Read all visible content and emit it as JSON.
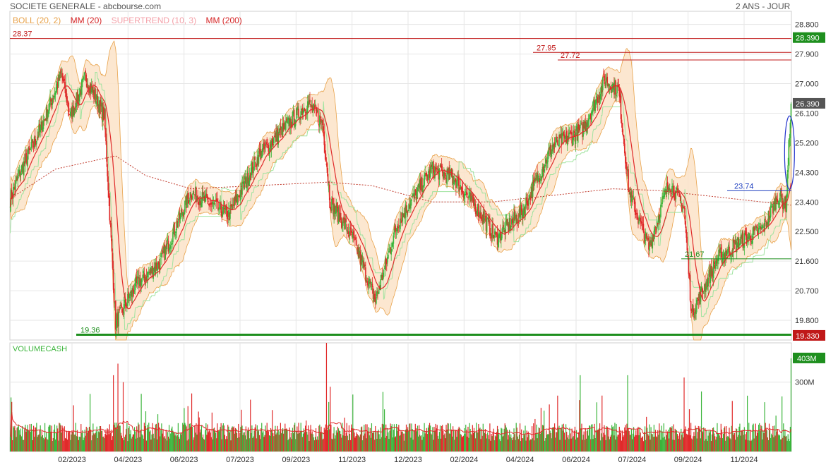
{
  "header": {
    "title": "SOCIETE GENERALE - abcbourse.com",
    "period": "2 ANS - JOUR"
  },
  "legend": [
    {
      "label": "BOLL (20, 2)",
      "color": "#e8a24a"
    },
    {
      "label": "MM (20)",
      "color": "#d62728"
    },
    {
      "label": "SUPERTREND (10, 3)",
      "color": "#f4a0a8"
    },
    {
      "label": "MM (200)",
      "color": "#d62728"
    }
  ],
  "colors": {
    "up": "#3bb53b",
    "down": "#e02a2a",
    "boll_fill": "#fbe3c8",
    "boll_line": "#e8a24a",
    "grid": "#e6e6e6"
  },
  "chart_data": {
    "type": "candlestick",
    "title": "SOCIETE GENERALE",
    "price_axis": {
      "ticks": [
        "28.800",
        "27.900",
        "27.000",
        "26.100",
        "25.200",
        "24.300",
        "23.400",
        "22.500",
        "21.600",
        "20.700",
        "19.800"
      ],
      "ylim": [
        19.2,
        29.2
      ]
    },
    "x_ticks": [
      "02/2023",
      "04/2023",
      "06/2023",
      "07/2023",
      "09/2023",
      "11/2023",
      "12/2023",
      "02/2024",
      "04/2024",
      "06/2024",
      "07/2024",
      "09/2024",
      "11/2024"
    ],
    "last_price": "26.390",
    "price_tags": [
      {
        "label": "28.390",
        "value": 28.39,
        "color": "#1e8f1e"
      },
      {
        "label": "19.330",
        "value": 19.33,
        "color": "#c01818"
      }
    ],
    "levels": [
      {
        "label": "28.37",
        "value": 28.37,
        "color": "#c01818"
      },
      {
        "label": "27.95",
        "value": 27.95,
        "color": "#c01818"
      },
      {
        "label": "27.72",
        "value": 27.72,
        "color": "#c01818"
      },
      {
        "label": "19.36",
        "value": 19.36,
        "color": "#1e8f1e"
      },
      {
        "label": "23.74",
        "value": 23.74,
        "color": "#1f3fbf"
      },
      {
        "label": "21.67",
        "value": 21.67,
        "color": "#1e8f1e"
      }
    ],
    "close_anchors": [
      [
        0,
        23.5
      ],
      [
        15,
        24.4
      ],
      [
        40,
        25.6
      ],
      [
        68,
        27.3
      ],
      [
        80,
        26.0
      ],
      [
        100,
        27.2
      ],
      [
        125,
        26.0
      ],
      [
        140,
        19.7
      ],
      [
        165,
        20.8
      ],
      [
        200,
        21.6
      ],
      [
        240,
        23.7
      ],
      [
        290,
        23.0
      ],
      [
        330,
        24.8
      ],
      [
        395,
        26.4
      ],
      [
        415,
        25.8
      ],
      [
        425,
        23.4
      ],
      [
        455,
        22.3
      ],
      [
        485,
        20.4
      ],
      [
        515,
        22.8
      ],
      [
        560,
        24.4
      ],
      [
        590,
        24.1
      ],
      [
        620,
        23.2
      ],
      [
        645,
        22.3
      ],
      [
        680,
        23.1
      ],
      [
        720,
        25.1
      ],
      [
        760,
        25.6
      ],
      [
        790,
        27.1
      ],
      [
        808,
        26.8
      ],
      [
        822,
        23.7
      ],
      [
        848,
        22.0
      ],
      [
        875,
        24.0
      ],
      [
        895,
        23.2
      ],
      [
        905,
        20.0
      ],
      [
        940,
        21.7
      ],
      [
        970,
        22.2
      ],
      [
        1000,
        22.6
      ],
      [
        1020,
        23.6
      ],
      [
        1030,
        23.3
      ],
      [
        1037,
        26.39
      ]
    ],
    "ma200_anchors": [
      [
        0,
        23.5
      ],
      [
        60,
        24.4
      ],
      [
        140,
        24.8
      ],
      [
        180,
        24.2
      ],
      [
        240,
        23.8
      ],
      [
        330,
        23.9
      ],
      [
        420,
        24.0
      ],
      [
        480,
        23.9
      ],
      [
        560,
        23.4
      ],
      [
        640,
        23.4
      ],
      [
        720,
        23.6
      ],
      [
        800,
        23.8
      ],
      [
        860,
        23.75
      ],
      [
        940,
        23.55
      ],
      [
        1037,
        23.3
      ]
    ],
    "volume": {
      "label": "VOLUMECASH",
      "ticks": [
        "300M"
      ],
      "last_label": "403M",
      "last_value": 403,
      "ymax": 470
    }
  }
}
